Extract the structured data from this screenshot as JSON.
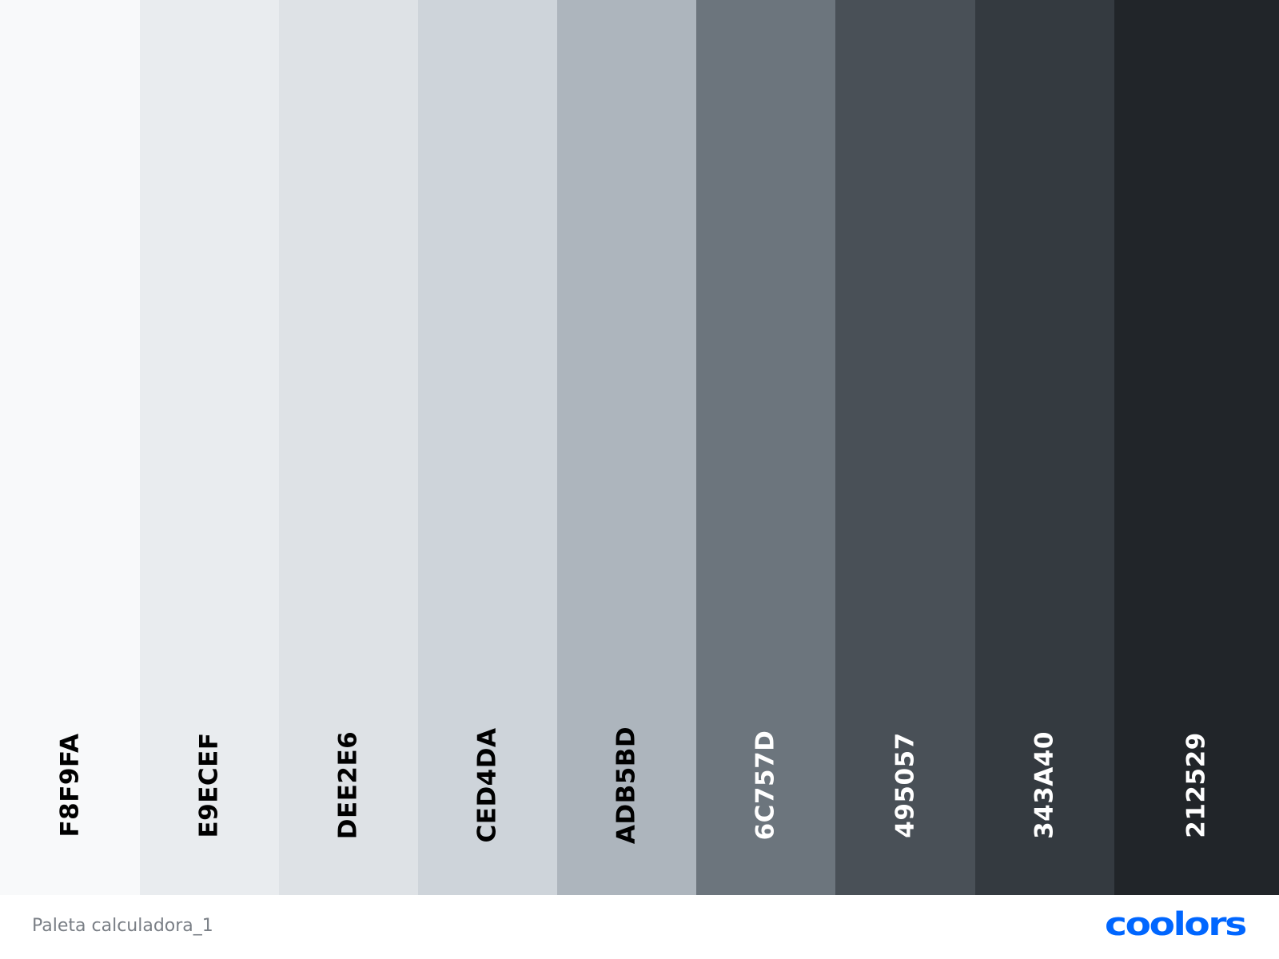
{
  "palette": {
    "name": "Paleta calculadora_1",
    "brand": "coolors",
    "brand_color": "#0066FF",
    "swatches": [
      {
        "code": "F8F9FA",
        "color": "#F8F9FA",
        "text_color": "#000000"
      },
      {
        "code": "E9ECEF",
        "color": "#E9ECEF",
        "text_color": "#000000"
      },
      {
        "code": "DEE2E6",
        "color": "#DEE2E6",
        "text_color": "#000000"
      },
      {
        "code": "CED4DA",
        "color": "#CED4DA",
        "text_color": "#000000"
      },
      {
        "code": "ADB5BD",
        "color": "#ADB5BD",
        "text_color": "#000000"
      },
      {
        "code": "6C757D",
        "color": "#6C757D",
        "text_color": "#FFFFFF"
      },
      {
        "code": "495057",
        "color": "#495057",
        "text_color": "#FFFFFF"
      },
      {
        "code": "343A40",
        "color": "#343A40",
        "text_color": "#FFFFFF"
      },
      {
        "code": "212529",
        "color": "#212529",
        "text_color": "#FFFFFF"
      }
    ]
  }
}
